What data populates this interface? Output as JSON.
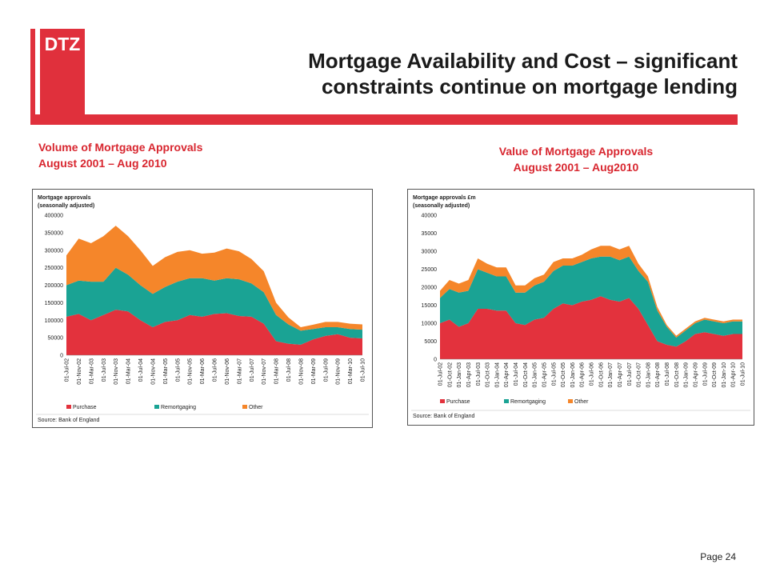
{
  "logo": {
    "text": "DTZ"
  },
  "title": {
    "line1": "Mortgage Availability and Cost – significant",
    "line2": "constraints continue on mortgage lending"
  },
  "subtitles": {
    "left_line1": "Volume of Mortgage Approvals",
    "left_line2": "August 2001 – Aug 2010",
    "right_line1": "Value of Mortgage Approvals",
    "right_line2": "August 2001 – Aug2010"
  },
  "page": {
    "label": "Page 24"
  },
  "colors": {
    "accent": "#e0303c",
    "purchase": "#e3323d",
    "remortgaging": "#1aa394",
    "other": "#f5862a"
  },
  "chart_data": [
    {
      "type": "area",
      "stacked": true,
      "title_line1": "Mortgage approvals",
      "title_line2": "(seasonally adjusted)",
      "source": "Source: Bank of England",
      "ylim": [
        0,
        400000
      ],
      "yticks": [
        0,
        50000,
        100000,
        150000,
        200000,
        250000,
        300000,
        350000,
        400000
      ],
      "xticklabels": [
        "01-Jul-02",
        "01-Nov-02",
        "01-Mar-03",
        "01-Jul-03",
        "01-Nov-03",
        "01-Mar-04",
        "01-Jul-04",
        "01-Nov-04",
        "01-Mar-05",
        "01-Jul-05",
        "01-Nov-05",
        "01-Mar-06",
        "01-Jul-06",
        "01-Nov-06",
        "01-Mar-07",
        "01-Jul-07",
        "01-Nov-07",
        "01-Mar-08",
        "01-Jul-08",
        "01-Nov-08",
        "01-Mar-09",
        "01-Jul-09",
        "01-Nov-09",
        "01-Mar-10",
        "01-Jul-10"
      ],
      "x": [
        "Jul-02",
        "Nov-02",
        "Mar-03",
        "Jul-03",
        "Nov-03",
        "Mar-04",
        "Jul-04",
        "Nov-04",
        "Mar-05",
        "Jul-05",
        "Nov-05",
        "Mar-06",
        "Jul-06",
        "Nov-06",
        "Mar-07",
        "Jul-07",
        "Nov-07",
        "Mar-08",
        "Jul-08",
        "Nov-08",
        "Mar-09",
        "Jul-09",
        "Nov-09",
        "Mar-10",
        "Jul-10"
      ],
      "legend": [
        "Purchase",
        "Remortgaging",
        "Other"
      ],
      "series": [
        {
          "name": "Purchase",
          "values": [
            110000,
            118000,
            100000,
            115000,
            130000,
            125000,
            100000,
            80000,
            95000,
            100000,
            115000,
            110000,
            118000,
            120000,
            112000,
            110000,
            90000,
            40000,
            33000,
            30000,
            45000,
            55000,
            60000,
            50000,
            48000
          ]
        },
        {
          "name": "Remortgaging",
          "values": [
            90000,
            95000,
            110000,
            95000,
            120000,
            105000,
            100000,
            95000,
            100000,
            110000,
            105000,
            110000,
            95000,
            100000,
            105000,
            95000,
            90000,
            75000,
            55000,
            40000,
            30000,
            25000,
            20000,
            25000,
            25000
          ]
        },
        {
          "name": "Other",
          "values": [
            85000,
            120000,
            110000,
            130000,
            120000,
            110000,
            100000,
            80000,
            85000,
            85000,
            80000,
            70000,
            80000,
            85000,
            80000,
            70000,
            60000,
            35000,
            20000,
            10000,
            12000,
            15000,
            15000,
            15000,
            15000
          ]
        }
      ]
    },
    {
      "type": "area",
      "stacked": true,
      "title_line1": "Mortgage approvals £m",
      "title_line2": "(seasonally adjusted)",
      "source": "Source: Bank of England",
      "ylim": [
        0,
        40000
      ],
      "yticks": [
        0,
        5000,
        10000,
        15000,
        20000,
        25000,
        30000,
        35000,
        40000
      ],
      "xticklabels": [
        "01-Jul-02",
        "01-Oct-02",
        "01-Jan-03",
        "01-Apr-03",
        "01-Jul-03",
        "01-Oct-03",
        "01-Jan-04",
        "01-Apr-04",
        "01-Jul-04",
        "01-Oct-04",
        "01-Jan-05",
        "01-Apr-05",
        "01-Jul-05",
        "01-Oct-05",
        "01-Jan-06",
        "01-Apr-06",
        "01-Jul-06",
        "01-Oct-06",
        "01-Jan-07",
        "01-Apr-07",
        "01-Jul-07",
        "01-Oct-07",
        "01-Jan-08",
        "01-Apr-08",
        "01-Jul-08",
        "01-Oct-08",
        "01-Jan-09",
        "01-Apr-09",
        "01-Jul-09",
        "01-Oct-09",
        "01-Jan-10",
        "01-Apr-10",
        "01-Jul-10"
      ],
      "x": [
        "Jul-02",
        "Oct-02",
        "Jan-03",
        "Apr-03",
        "Jul-03",
        "Oct-03",
        "Jan-04",
        "Apr-04",
        "Jul-04",
        "Oct-04",
        "Jan-05",
        "Apr-05",
        "Jul-05",
        "Oct-05",
        "Jan-06",
        "Apr-06",
        "Jul-06",
        "Oct-06",
        "Jan-07",
        "Apr-07",
        "Jul-07",
        "Oct-07",
        "Jan-08",
        "Apr-08",
        "Jul-08",
        "Oct-08",
        "Jan-09",
        "Apr-09",
        "Jul-09",
        "Oct-09",
        "Jan-10",
        "Apr-10",
        "Jul-10"
      ],
      "legend": [
        "Purchase",
        "Remortgaging",
        "Other"
      ],
      "series": [
        {
          "name": "Purchase",
          "values": [
            10000,
            11000,
            9000,
            10000,
            14000,
            14000,
            13500,
            13500,
            10000,
            9500,
            11000,
            11500,
            14000,
            15500,
            15000,
            16000,
            16500,
            17500,
            16500,
            16000,
            17000,
            14000,
            9500,
            5000,
            4000,
            3500,
            5000,
            7000,
            7500,
            7000,
            6500,
            7000,
            7000
          ]
        },
        {
          "name": "Remortgaging",
          "values": [
            7000,
            8500,
            9500,
            9000,
            11000,
            10000,
            9500,
            9500,
            8500,
            9000,
            9500,
            10000,
            10500,
            10500,
            11000,
            11000,
            11500,
            11000,
            12000,
            11500,
            11500,
            10500,
            12000,
            8500,
            5000,
            2500,
            3000,
            3000,
            3500,
            3500,
            3500,
            3500,
            3500
          ]
        },
        {
          "name": "Other",
          "values": [
            2000,
            2500,
            2500,
            3000,
            3000,
            2500,
            2500,
            2500,
            2000,
            2000,
            2000,
            2000,
            2500,
            2000,
            2000,
            2000,
            2500,
            3000,
            3000,
            3000,
            3000,
            2000,
            1500,
            1000,
            500,
            500,
            500,
            500,
            500,
            500,
            500,
            500,
            500
          ]
        }
      ]
    }
  ]
}
